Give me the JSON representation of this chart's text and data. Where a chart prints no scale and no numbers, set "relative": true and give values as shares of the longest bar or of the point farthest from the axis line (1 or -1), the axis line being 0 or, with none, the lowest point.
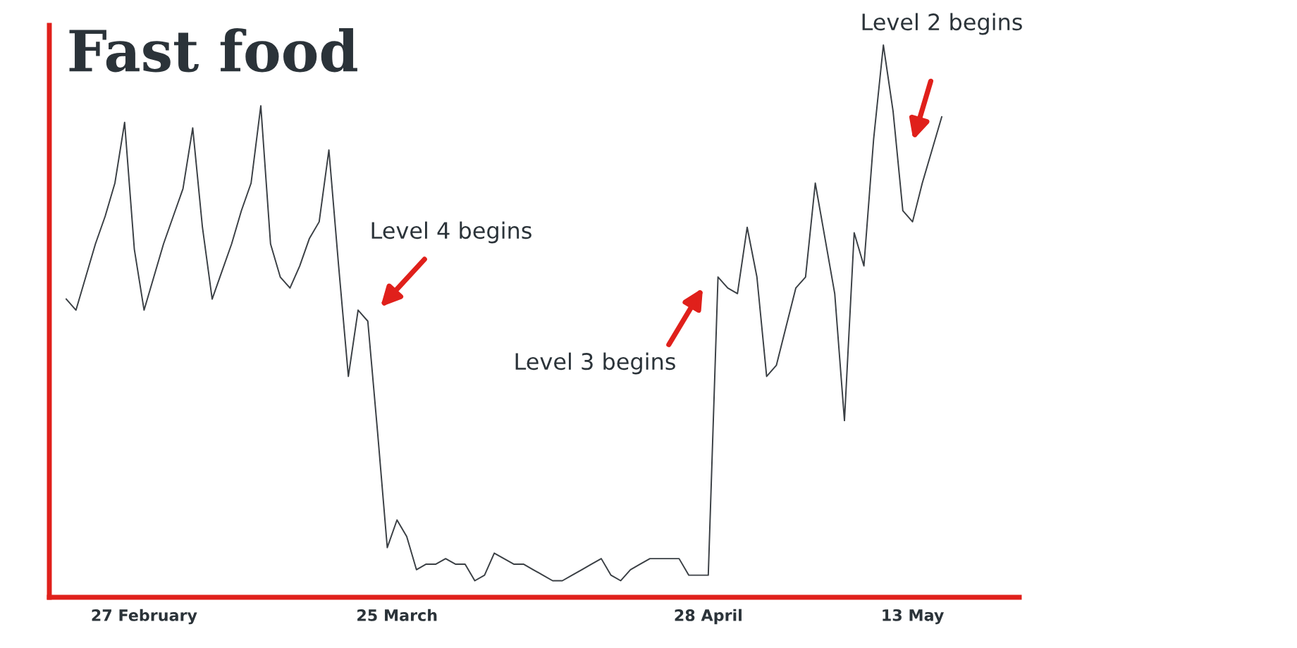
{
  "chart_data": {
    "type": "line",
    "title": "Fast food",
    "relative": true,
    "categories": [
      null,
      null,
      null,
      null,
      null,
      null,
      null,
      null,
      "27 February",
      null,
      null,
      null,
      null,
      null,
      null,
      null,
      null,
      null,
      null,
      null,
      null,
      null,
      null,
      null,
      null,
      null,
      null,
      null,
      null,
      null,
      null,
      null,
      null,
      null,
      "25 March",
      null,
      null,
      null,
      null,
      null,
      null,
      null,
      null,
      null,
      null,
      null,
      null,
      null,
      null,
      null,
      null,
      null,
      null,
      null,
      null,
      null,
      null,
      null,
      null,
      null,
      null,
      null,
      null,
      null,
      null,
      null,
      "28 April",
      null,
      null,
      null,
      null,
      null,
      null,
      null,
      null,
      null,
      null,
      null,
      null,
      null,
      null,
      null,
      null,
      null,
      null,
      null,
      null,
      "13 May",
      null,
      null,
      null
    ],
    "series": [
      {
        "color": "#3a3f44",
        "values": [
          0.54,
          0.52,
          0.58,
          0.64,
          0.69,
          0.75,
          0.86,
          0.63,
          0.52,
          0.58,
          0.64,
          0.69,
          0.74,
          0.85,
          0.67,
          0.54,
          0.59,
          0.64,
          0.7,
          0.75,
          0.89,
          0.64,
          0.58,
          0.56,
          0.6,
          0.65,
          0.68,
          0.81,
          0.6,
          0.4,
          0.52,
          0.5,
          0.3,
          0.09,
          0.14,
          0.11,
          0.05,
          0.06,
          0.06,
          0.07,
          0.06,
          0.06,
          0.03,
          0.04,
          0.08,
          0.07,
          0.06,
          0.06,
          0.05,
          0.04,
          0.03,
          0.03,
          0.04,
          0.05,
          0.06,
          0.07,
          0.04,
          0.03,
          0.05,
          0.06,
          0.07,
          0.07,
          0.07,
          0.07,
          0.04,
          0.04,
          0.04,
          0.58,
          0.56,
          0.55,
          0.67,
          0.58,
          0.4,
          0.42,
          0.49,
          0.56,
          0.58,
          0.75,
          0.65,
          0.55,
          0.32,
          0.66,
          0.6,
          0.83,
          1.0,
          0.88,
          0.7,
          0.68,
          0.75,
          0.81,
          0.87
        ]
      }
    ],
    "annotations": [
      "Level 4 begins",
      "Level 3 begins",
      "Level 2 begins"
    ],
    "grid": false,
    "legend": false,
    "marker": "none",
    "line_style": "solid"
  }
}
